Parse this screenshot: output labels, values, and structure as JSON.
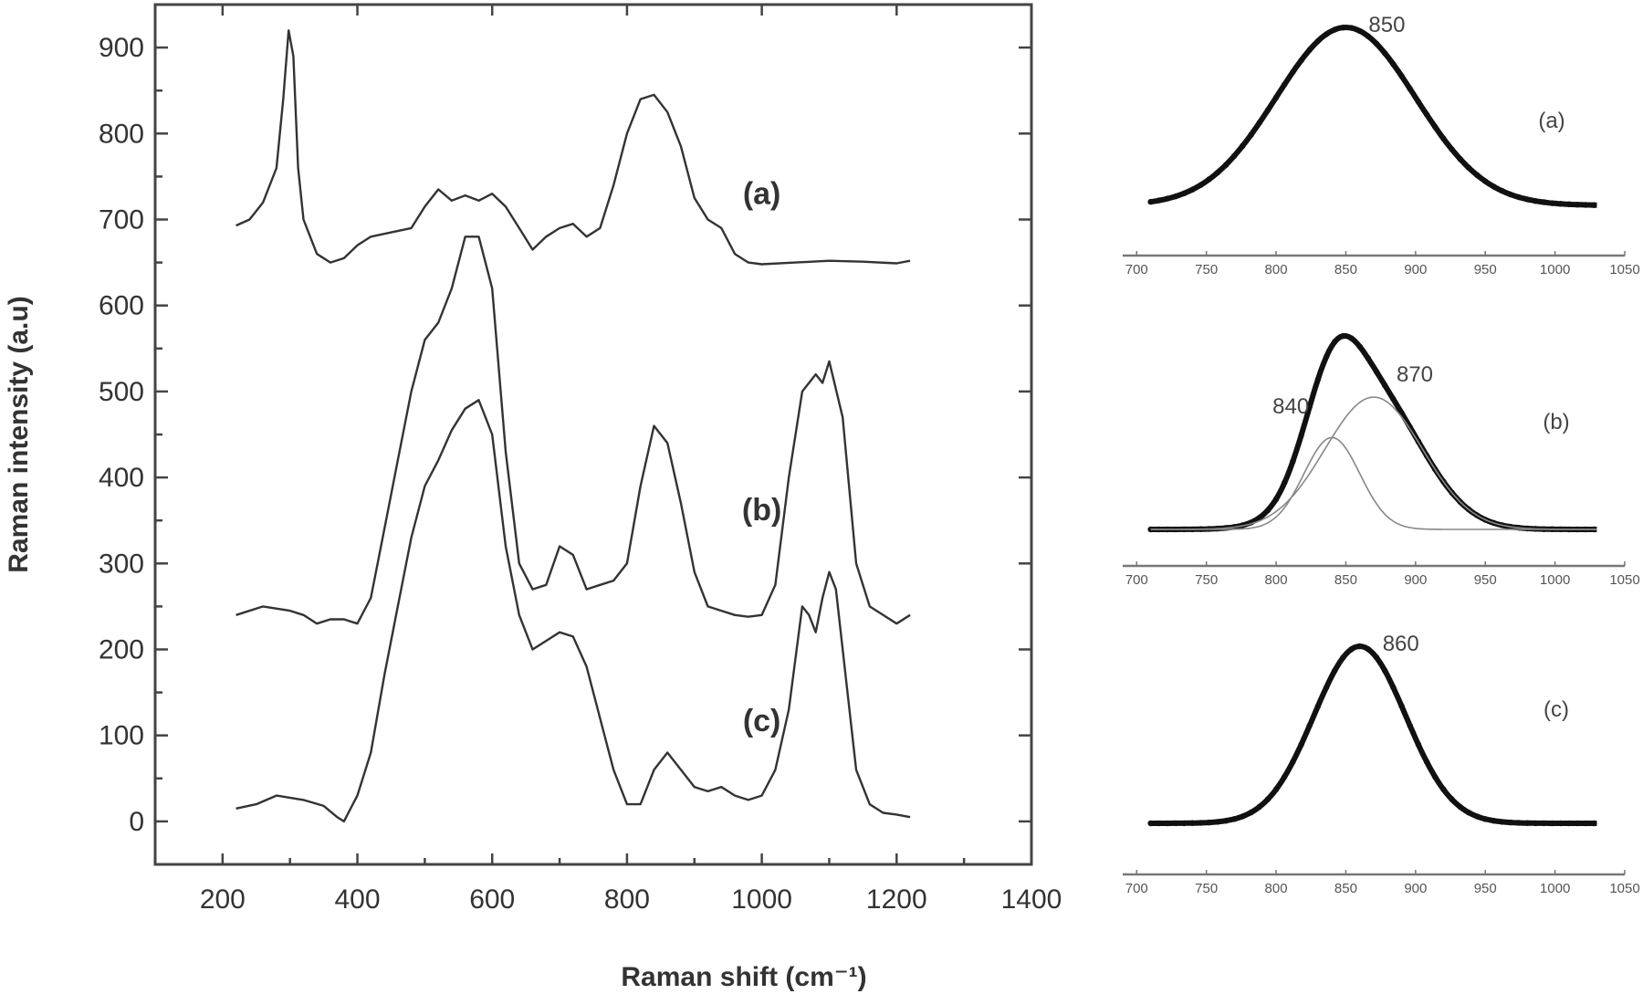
{
  "chart_data": [
    {
      "type": "line",
      "xlabel": "Raman shift (cm⁻¹)",
      "ylabel": "Raman intensity (a.u)",
      "xlim": [
        100,
        1400
      ],
      "ylim": [
        -50,
        950
      ],
      "xticks": [
        200,
        400,
        600,
        800,
        1000,
        1200,
        1400
      ],
      "yticks": [
        0,
        100,
        200,
        300,
        400,
        500,
        600,
        700,
        800,
        900
      ],
      "series": [
        {
          "name": "(a)",
          "label_position": [
            1000,
            718
          ],
          "x": [
            220,
            240,
            260,
            280,
            290,
            298,
            305,
            312,
            320,
            340,
            360,
            380,
            400,
            420,
            450,
            480,
            500,
            520,
            540,
            560,
            580,
            600,
            620,
            640,
            660,
            680,
            700,
            720,
            740,
            760,
            780,
            800,
            820,
            840,
            860,
            880,
            900,
            920,
            940,
            960,
            980,
            1000,
            1050,
            1100,
            1150,
            1200,
            1220
          ],
          "y": [
            693,
            700,
            720,
            760,
            840,
            920,
            890,
            760,
            700,
            660,
            650,
            655,
            670,
            680,
            685,
            690,
            715,
            735,
            722,
            728,
            722,
            730,
            715,
            690,
            665,
            680,
            690,
            695,
            680,
            690,
            740,
            800,
            840,
            845,
            825,
            785,
            725,
            700,
            690,
            660,
            650,
            648,
            650,
            652,
            651,
            649,
            652
          ]
        },
        {
          "name": "(b)",
          "label_position": [
            1000,
            350
          ],
          "x": [
            220,
            260,
            300,
            320,
            340,
            360,
            380,
            400,
            420,
            440,
            460,
            480,
            500,
            520,
            540,
            560,
            580,
            600,
            620,
            640,
            660,
            680,
            700,
            720,
            740,
            760,
            780,
            800,
            820,
            840,
            860,
            880,
            900,
            920,
            940,
            960,
            980,
            1000,
            1020,
            1040,
            1060,
            1080,
            1090,
            1100,
            1120,
            1140,
            1160,
            1180,
            1200,
            1220
          ],
          "y": [
            240,
            250,
            245,
            240,
            230,
            235,
            235,
            230,
            260,
            340,
            420,
            500,
            560,
            580,
            620,
            680,
            680,
            620,
            430,
            300,
            270,
            275,
            320,
            310,
            270,
            275,
            280,
            300,
            390,
            460,
            440,
            370,
            290,
            250,
            245,
            240,
            238,
            240,
            275,
            400,
            500,
            520,
            510,
            535,
            470,
            300,
            250,
            240,
            230,
            240
          ]
        },
        {
          "name": "(c)",
          "label_position": [
            1000,
            105
          ],
          "x": [
            220,
            250,
            280,
            320,
            350,
            370,
            380,
            400,
            420,
            440,
            460,
            480,
            500,
            520,
            540,
            560,
            580,
            600,
            620,
            640,
            660,
            680,
            700,
            720,
            740,
            760,
            780,
            800,
            820,
            840,
            860,
            880,
            900,
            920,
            940,
            960,
            980,
            1000,
            1020,
            1040,
            1060,
            1070,
            1080,
            1090,
            1100,
            1110,
            1120,
            1140,
            1160,
            1180,
            1200,
            1220
          ],
          "y": [
            15,
            20,
            30,
            25,
            18,
            5,
            0,
            30,
            80,
            170,
            250,
            330,
            390,
            420,
            455,
            480,
            490,
            450,
            320,
            240,
            200,
            210,
            220,
            215,
            180,
            120,
            60,
            20,
            20,
            60,
            80,
            60,
            40,
            35,
            40,
            30,
            25,
            30,
            60,
            130,
            250,
            240,
            220,
            260,
            290,
            270,
            200,
            60,
            20,
            10,
            8,
            5
          ]
        }
      ]
    },
    {
      "type": "line",
      "panel": "(a)",
      "xlim": [
        690,
        1050
      ],
      "xticks": [
        700,
        750,
        800,
        850,
        900,
        950,
        1000,
        1050
      ],
      "annotations": [
        {
          "text": "850",
          "x": 850
        }
      ],
      "fits": [
        {
          "center": 850,
          "width": 50,
          "height": 1.0
        }
      ],
      "baseline": 0.12
    },
    {
      "type": "line",
      "panel": "(b)",
      "xlim": [
        690,
        1050
      ],
      "xticks": [
        700,
        750,
        800,
        850,
        900,
        950,
        1000,
        1050
      ],
      "annotations": [
        {
          "text": "840",
          "x": 840
        },
        {
          "text": "870",
          "x": 870
        }
      ],
      "fits": [
        {
          "center": 840,
          "width": 20,
          "height": 0.5
        },
        {
          "center": 870,
          "width": 35,
          "height": 0.72
        }
      ],
      "baseline": 0.0
    },
    {
      "type": "line",
      "panel": "(c)",
      "xlim": [
        690,
        1050
      ],
      "xticks": [
        700,
        750,
        800,
        850,
        900,
        950,
        1000,
        1050
      ],
      "annotations": [
        {
          "text": "860",
          "x": 860
        }
      ],
      "fits": [
        {
          "center": 860,
          "width": 33,
          "height": 1.0
        }
      ],
      "baseline": 0.0
    }
  ]
}
